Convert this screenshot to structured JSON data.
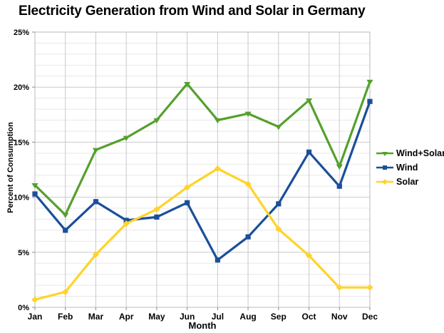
{
  "chart_data": {
    "type": "line",
    "title": "Electricity Generation from Wind and Solar in Germany",
    "xlabel": "Month",
    "ylabel": "Percent of Consumption",
    "x": [
      "Jan",
      "Feb",
      "Mar",
      "Apr",
      "May",
      "Jun",
      "Jul",
      "Aug",
      "Sep",
      "Oct",
      "Nov",
      "Dec"
    ],
    "ylim": [
      0,
      25
    ],
    "y_tick_labels": [
      "0%",
      "5%",
      "10%",
      "15%",
      "20%",
      "25%"
    ],
    "grid": "horizontal minor every 1%, major every 5%, vertical at each month",
    "legend_position": "right",
    "series": [
      {
        "name": "Wind+Solar",
        "color": "#55A02D",
        "marker": "triangle-down",
        "values": [
          11.1,
          8.4,
          14.3,
          15.4,
          17.0,
          20.3,
          17.0,
          17.6,
          16.4,
          18.8,
          12.8,
          20.5
        ]
      },
      {
        "name": "Wind",
        "color": "#1A4F9A",
        "marker": "square",
        "values": [
          10.3,
          7.0,
          9.6,
          7.9,
          8.2,
          9.5,
          4.3,
          6.4,
          9.4,
          14.1,
          11.0,
          18.7
        ]
      },
      {
        "name": "Solar",
        "color": "#FFD32A",
        "marker": "diamond",
        "values": [
          0.7,
          1.4,
          4.8,
          7.6,
          8.9,
          10.9,
          12.6,
          11.2,
          7.1,
          4.7,
          1.8,
          1.8
        ]
      }
    ],
    "colors": {
      "grid_minor": "#e8e8e8",
      "grid_major": "#c9c9c9",
      "plot_border": "#b8b8b8",
      "tick": "#8a8a8a",
      "text": "#000000"
    }
  }
}
